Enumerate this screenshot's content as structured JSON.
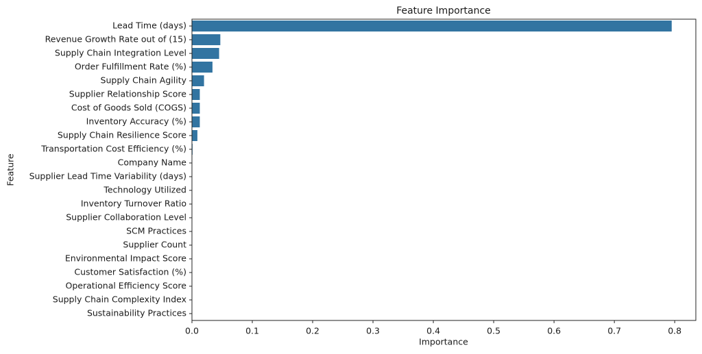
{
  "chart_data": {
    "type": "bar",
    "orientation": "horizontal",
    "title": "Feature Importance",
    "x_label": "Importance",
    "y_label": "Feature",
    "categories": [
      "Lead Time (days)",
      "Revenue Growth Rate out of (15)",
      "Supply Chain Integration Level",
      "Order Fulfillment Rate (%)",
      "Supply Chain Agility",
      "Supplier Relationship Score",
      "Cost of Goods Sold (COGS)",
      "Inventory Accuracy (%)",
      "Supply Chain Resilience Score",
      "Transportation Cost Efficiency (%)",
      "Company Name",
      "Supplier Lead Time Variability (days)",
      "Technology Utilized",
      "Inventory Turnover Ratio",
      "Supplier Collaboration Level",
      "SCM Practices",
      "Supplier Count",
      "Environmental Impact Score",
      "Customer Satisfaction (%)",
      "Operational Efficiency Score",
      "Supply Chain Complexity Index",
      "Sustainability Practices"
    ],
    "values": [
      0.795,
      0.047,
      0.045,
      0.034,
      0.02,
      0.013,
      0.013,
      0.013,
      0.009,
      0.001,
      0,
      0,
      0,
      0,
      0,
      0,
      0,
      0,
      0,
      0,
      0,
      0
    ],
    "color": "#3274a1",
    "xlim": [
      0,
      0.835
    ],
    "xticks": [
      {
        "value": 0,
        "label": "0.0"
      },
      0.1,
      0.2,
      0.3,
      0.4,
      0.5,
      0.6,
      0.7,
      0.8
    ],
    "grid": false
  }
}
